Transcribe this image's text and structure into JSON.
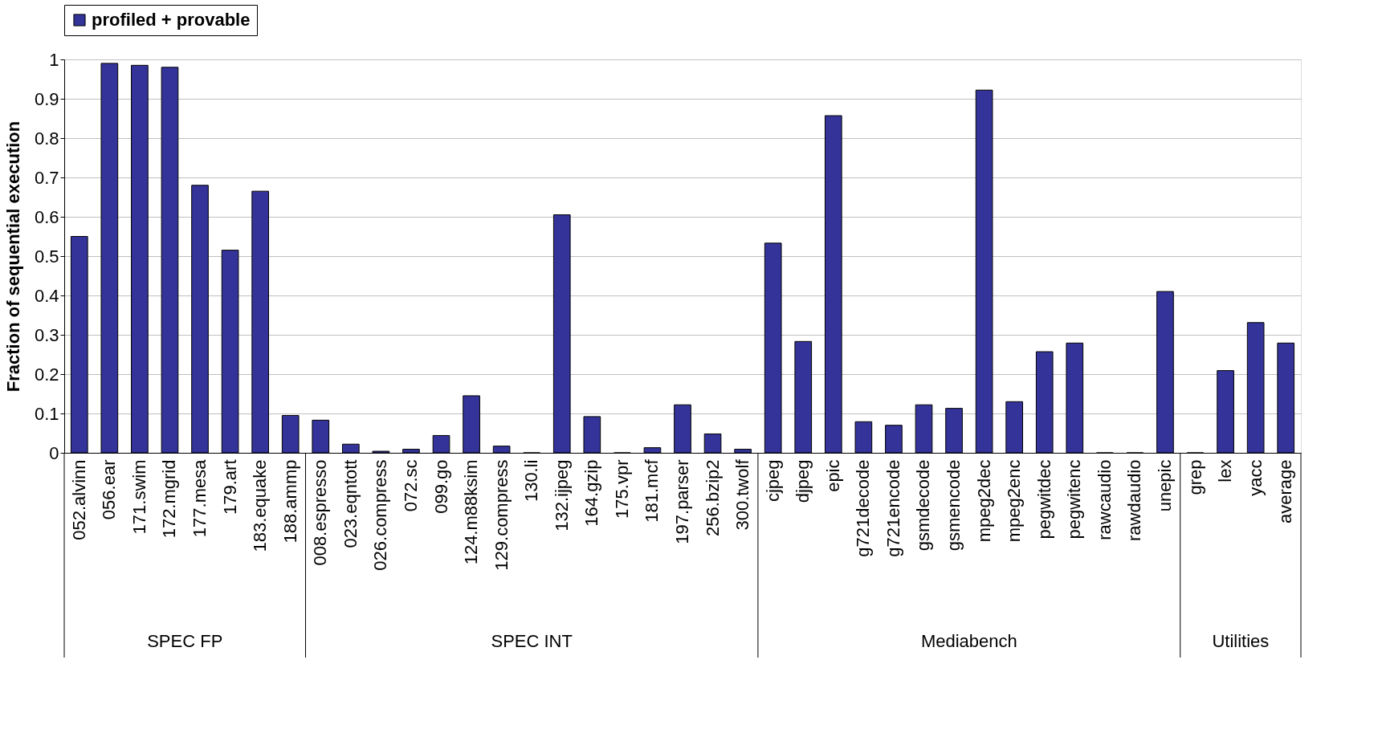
{
  "chart_data": {
    "type": "bar",
    "ylabel": "Fraction of sequential execution",
    "categories": [
      "052.alvinn",
      "056.ear",
      "171.swim",
      "172.mgrid",
      "177.mesa",
      "179.art",
      "183.equake",
      "188.ammp",
      "008.espresso",
      "023.eqntott",
      "026.compress",
      "072.sc",
      "099.go",
      "124.m88ksim",
      "129.compress",
      "130.li",
      "132.ijpeg",
      "164.gzip",
      "175.vpr",
      "181.mcf",
      "197.parser",
      "256.bzip2",
      "300.twolf",
      "cjpeg",
      "djpeg",
      "epic",
      "g721decode",
      "g721encode",
      "gsmdecode",
      "gsmencode",
      "mpeg2dec",
      "mpeg2enc",
      "pegwitdec",
      "pegwitenc",
      "rawcaudio",
      "rawdaudio",
      "unepic",
      "grep",
      "lex",
      "yacc",
      "average"
    ],
    "series": [
      {
        "name": "profiled + provable",
        "color": "#333399",
        "values": [
          0.55,
          0.99,
          0.985,
          0.98,
          0.68,
          0.515,
          0.665,
          0.095,
          0.083,
          0.022,
          0.004,
          0.009,
          0.044,
          0.145,
          0.017,
          0,
          0.605,
          0.092,
          0,
          0.013,
          0.122,
          0.048,
          0.009,
          0.533,
          0.283,
          0.857,
          0.079,
          0.07,
          0.122,
          0.113,
          0.922,
          0.13,
          0.257,
          0.279,
          0,
          0,
          0.41,
          0,
          0.209,
          0.331,
          0.279
        ]
      }
    ],
    "ylim": [
      0,
      1
    ],
    "yticks": [
      0,
      0.1,
      0.2,
      0.3,
      0.4,
      0.5,
      0.6,
      0.7,
      0.8,
      0.9,
      1
    ],
    "grid": "y",
    "legend": "top",
    "annotations": [
      "SPEC FP",
      "SPEC INT",
      "Mediabench",
      "Utilities"
    ]
  }
}
